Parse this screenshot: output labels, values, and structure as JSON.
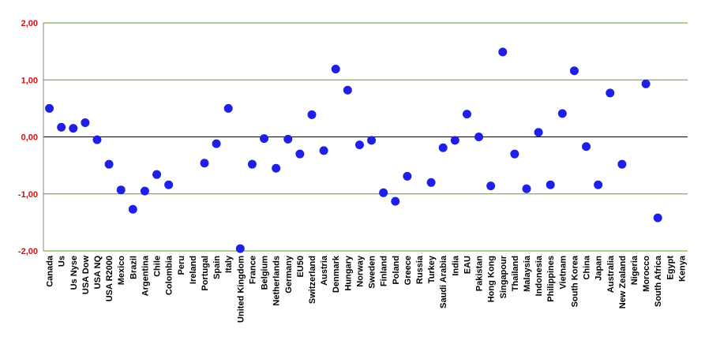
{
  "chart_data": {
    "type": "scatter",
    "categories": [
      "Canada",
      "Us",
      "Us Nyse",
      "USA Dow",
      "USA NQ",
      "USA R2000",
      "Mexico",
      "Brazil",
      "Argentina",
      "Chile",
      "Colombia",
      "Peru",
      "Ireland",
      "Portugal",
      "Spain",
      "Italy",
      "United Kingdom",
      "France",
      "Belgium",
      "Netherlands",
      "Germany",
      "EU50",
      "Switzerland",
      "Austria",
      "Denmark",
      "Hungary",
      "Norway",
      "Sweden",
      "Finland",
      "Poland",
      "Greece",
      "Russia",
      "Turkey",
      "Saudi Arabia",
      "India",
      "EAU",
      "Pakistan",
      "Hong Kong",
      "Singapour",
      "Thailand",
      "Malaysia",
      "Indonesia",
      "Philippines",
      "Vietnam",
      "South Korea",
      "China",
      "Japan",
      "Australia",
      "New Zealand",
      "Nigeria",
      "Morocco",
      "South Africa",
      "Egypt",
      "Kenya"
    ],
    "values": [
      0.5,
      0.17,
      0.15,
      0.25,
      -0.05,
      -0.48,
      -0.93,
      -1.27,
      -0.95,
      -0.66,
      -0.84,
      null,
      null,
      -0.46,
      -0.12,
      0.5,
      -1.96,
      -0.48,
      -0.03,
      -0.55,
      -0.04,
      -0.3,
      0.39,
      -0.24,
      1.19,
      0.82,
      -0.14,
      -0.06,
      -0.98,
      -1.13,
      -0.69,
      null,
      -0.8,
      -0.19,
      -0.06,
      0.4,
      0.0,
      -0.86,
      1.49,
      -0.3,
      -0.91,
      0.08,
      -0.84,
      0.41,
      1.16,
      -0.17,
      -0.84,
      0.77,
      -0.48,
      null,
      0.93,
      -1.42,
      null,
      null
    ],
    "color": "#1f1fe6",
    "ylim": [
      -2,
      2
    ],
    "yticks": [
      {
        "value": -2,
        "label": "-2,00"
      },
      {
        "value": -1,
        "label": "-1,00"
      },
      {
        "value": 0,
        "label": "0,00"
      },
      {
        "value": 1,
        "label": "1,00"
      },
      {
        "value": 2,
        "label": "2,00"
      }
    ],
    "grid": true,
    "grid_color": "#5a9e2a",
    "ytick_label_color": "#d01010"
  }
}
